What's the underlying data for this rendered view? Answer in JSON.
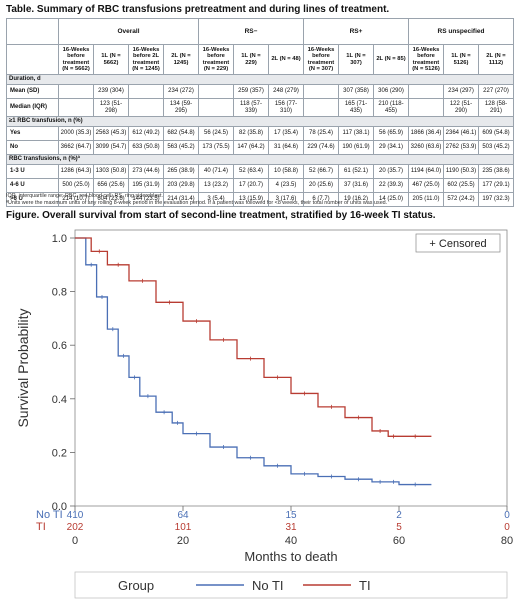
{
  "table": {
    "caption": "Table. Summary of RBC transfusions pretreatment and during lines of treatment.",
    "groups": [
      "Overall",
      "RS−",
      "RS+",
      "RS unspecified"
    ],
    "subheaders": [
      "16-Weeks before treatment (N = 5662)",
      "1L (N = 5662)",
      "16-Weeks before 2L treatment (N = 1245)",
      "2L (N = 1245)",
      "16-Weeks before treatment (N = 229)",
      "1L (N = 229)",
      "2L (N = 48)",
      "16-Weeks before treatment (N = 307)",
      "1L (N = 307)",
      "2L (N = 85)",
      "16-Weeks before treatment (N = 5126)",
      "1L (N = 5126)",
      "2L (N = 1112)"
    ],
    "sections": [
      {
        "title": "Duration, d",
        "rows": [
          {
            "label": "Mean (SD)",
            "cells": [
              "",
              "239 (304)",
              "",
              "234 (272)",
              "",
              "259 (357)",
              "248 (279)",
              "",
              "307 (358)",
              "306 (290)",
              "",
              "234 (297)",
              "227 (270)"
            ]
          },
          {
            "label": "Median (IQR)",
            "cells": [
              "",
              "123 (51-298)",
              "",
              "134 (59-295)",
              "",
              "118 (57-339)",
              "156 (77-310)",
              "",
              "165 (71-435)",
              "210 (118-455)",
              "",
              "122 (51-290)",
              "128 (58-291)"
            ]
          }
        ]
      },
      {
        "title": "≥1 RBC transfusion, n (%)",
        "rows": [
          {
            "label": "Yes",
            "cells": [
              "2000 (35.3)",
              "2563 (45.3)",
              "612 (49.2)",
              "682 (54.8)",
              "56 (24.5)",
              "82 (35.8)",
              "17 (35.4)",
              "78 (25.4)",
              "117 (38.1)",
              "56 (65.9)",
              "1866 (36.4)",
              "2364 (46.1)",
              "609 (54.8)"
            ]
          },
          {
            "label": "No",
            "cells": [
              "3662 (64.7)",
              "3099 (54.7)",
              "633 (50.8)",
              "563 (45.2)",
              "173 (75.5)",
              "147 (64.2)",
              "31 (64.6)",
              "229 (74.6)",
              "190 (61.9)",
              "29 (34.1)",
              "3260 (63.6)",
              "2762 (53.9)",
              "503 (45.2)"
            ]
          }
        ]
      },
      {
        "title": "RBC transfusions, n (%)ª",
        "rows": [
          {
            "label": "1-3 U",
            "cells": [
              "1286 (64.3)",
              "1303 (50.8)",
              "273 (44.6)",
              "265 (38.9)",
              "40 (71.4)",
              "52 (63.4)",
              "10 (58.8)",
              "52 (66.7)",
              "61 (52.1)",
              "20 (35.7)",
              "1194 (64.0)",
              "1190 (50.3)",
              "235 (38.6)"
            ]
          },
          {
            "label": "4-6 U",
            "cells": [
              "500 (25.0)",
              "656 (25.6)",
              "195 (31.9)",
              "203 (29.8)",
              "13 (23.2)",
              "17 (20.7)",
              "4 (23.5)",
              "20 (25.6)",
              "37 (31.6)",
              "22 (39.3)",
              "467 (25.0)",
              "602 (25.5)",
              "177 (29.1)"
            ]
          },
          {
            "label": ">6 U",
            "cells": [
              "214 (10.7)",
              "604 (23.6)",
              "144 (23.5)",
              "214 (31.4)",
              "3 (5.4)",
              "13 (15.9)",
              "3 (17.6)",
              "6 (7.7)",
              "19 (16.2)",
              "14 (25.0)",
              "205 (11.0)",
              "572 (24.2)",
              "197 (32.3)"
            ]
          }
        ]
      }
    ],
    "footnotes": [
      "IQR, interquartile range; RBC, red blood cell; RS, ring sideroblast.",
      "ªUnits were the maximum units of any rolling 8-week period in the evaluation period. If a patient was followed for <8 weeks, their total number of units was used."
    ]
  },
  "figure": {
    "caption": "Figure. Overall survival from start of second-line treatment, stratified by 16-week TI status."
  },
  "chart_data": {
    "type": "line",
    "title": "",
    "xlabel": "Months to death",
    "ylabel": "Survival Probability",
    "xlim": [
      0,
      80
    ],
    "ylim": [
      0,
      1
    ],
    "xticks": [
      0,
      20,
      40,
      60,
      80
    ],
    "yticks": [
      "0.0",
      "0.2",
      "0.4",
      "0.6",
      "0.8",
      "1.0"
    ],
    "legend_inset": "+ Censored",
    "legend_title": "Group",
    "grid": false,
    "series": [
      {
        "name": "No TI",
        "color": "#4a6fb5",
        "x": [
          0,
          2,
          4,
          6,
          8,
          10,
          12,
          15,
          18,
          20,
          25,
          30,
          35,
          40,
          45,
          50,
          55,
          58,
          60,
          66
        ],
        "y": [
          1.0,
          0.9,
          0.78,
          0.66,
          0.56,
          0.48,
          0.41,
          0.35,
          0.31,
          0.27,
          0.22,
          0.18,
          0.15,
          0.12,
          0.11,
          0.1,
          0.09,
          0.09,
          0.08,
          0.08
        ]
      },
      {
        "name": "TI",
        "color": "#b83c32",
        "x": [
          0,
          3,
          6,
          10,
          15,
          20,
          25,
          30,
          35,
          40,
          45,
          50,
          55,
          58,
          60,
          66
        ],
        "y": [
          1.0,
          0.95,
          0.9,
          0.84,
          0.76,
          0.69,
          0.62,
          0.55,
          0.48,
          0.42,
          0.37,
          0.33,
          0.28,
          0.26,
          0.26,
          0.26
        ]
      }
    ],
    "at_risk": {
      "times": [
        0,
        20,
        40,
        60,
        80
      ],
      "rows": [
        {
          "name": "No TI",
          "counts": [
            "410",
            "64",
            "15",
            "2",
            "0"
          ]
        },
        {
          "name": "TI",
          "counts": [
            "202",
            "101",
            "31",
            "5",
            "0"
          ]
        }
      ]
    }
  }
}
